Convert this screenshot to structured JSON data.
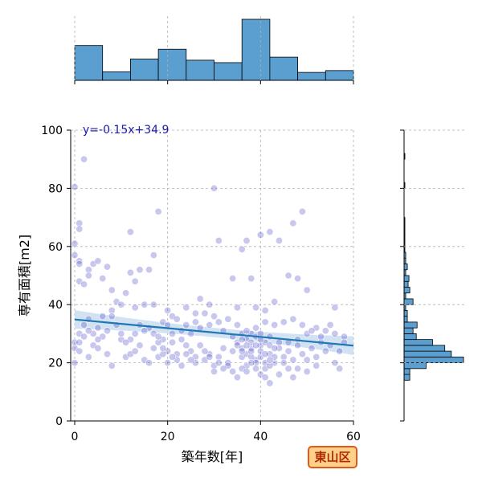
{
  "chart_data": {
    "type": "scatter",
    "xlabel": "築年数[年]",
    "ylabel": "専有面積[m2]",
    "xlim": [
      -1,
      60
    ],
    "ylim": [
      0,
      100
    ],
    "xticks": [
      "0",
      "20",
      "40",
      "60"
    ],
    "yticks": [
      "0",
      "20",
      "40",
      "60",
      "80",
      "100"
    ],
    "grid": true,
    "annotation": "y=-0.15x+34.9",
    "badge": "東山区",
    "regression": {
      "slope": -0.15,
      "intercept": 34.9
    },
    "colors": {
      "points": "#3b3bc4",
      "regression_line": "#1f77b4",
      "confidence_band": "#c6dbef",
      "histogram": "#5a9fcf",
      "annotation": "#1a1aa6",
      "badge_bg": "#ffd08a",
      "badge_border": "#e05a1a",
      "badge_text": "#b02a00"
    },
    "points": [
      [
        0,
        80.5
      ],
      [
        2,
        90
      ],
      [
        30,
        80
      ],
      [
        1,
        68
      ],
      [
        1,
        66
      ],
      [
        0,
        61
      ],
      [
        0,
        57
      ],
      [
        1,
        55
      ],
      [
        1,
        54
      ],
      [
        3,
        52
      ],
      [
        4,
        54
      ],
      [
        5,
        55
      ],
      [
        7,
        53
      ],
      [
        1,
        48
      ],
      [
        2,
        47
      ],
      [
        3,
        50
      ],
      [
        6,
        49
      ],
      [
        8,
        45
      ],
      [
        11,
        44
      ],
      [
        9,
        41
      ],
      [
        12,
        51
      ],
      [
        13,
        48
      ],
      [
        14,
        52
      ],
      [
        16,
        52
      ],
      [
        17,
        57
      ],
      [
        18,
        72
      ],
      [
        12,
        65
      ],
      [
        31,
        62
      ],
      [
        36,
        59
      ],
      [
        37,
        62
      ],
      [
        38,
        49
      ],
      [
        34,
        49
      ],
      [
        40,
        64
      ],
      [
        42,
        65
      ],
      [
        44,
        62
      ],
      [
        47,
        68
      ],
      [
        49,
        72
      ],
      [
        46,
        50
      ],
      [
        48,
        49
      ],
      [
        50,
        45
      ],
      [
        56,
        39
      ],
      [
        43,
        41
      ],
      [
        41,
        38
      ],
      [
        39,
        39
      ],
      [
        35,
        39
      ],
      [
        29,
        40
      ],
      [
        27,
        42
      ],
      [
        26,
        37
      ],
      [
        24,
        39
      ],
      [
        20,
        38
      ],
      [
        19,
        34
      ],
      [
        21,
        36
      ],
      [
        17,
        40
      ],
      [
        15,
        40
      ],
      [
        13,
        39
      ],
      [
        10,
        40
      ],
      [
        8,
        38
      ],
      [
        6,
        36
      ],
      [
        5,
        32
      ],
      [
        3,
        35
      ],
      [
        2,
        33
      ],
      [
        1,
        30
      ],
      [
        0,
        27
      ],
      [
        0,
        25
      ],
      [
        1,
        24
      ],
      [
        3,
        22
      ],
      [
        4,
        26
      ],
      [
        5,
        25
      ],
      [
        7,
        23
      ],
      [
        8,
        19
      ],
      [
        10,
        28
      ],
      [
        11,
        22
      ],
      [
        12,
        23
      ],
      [
        13,
        24
      ],
      [
        14,
        26
      ],
      [
        15,
        21
      ],
      [
        16,
        20
      ],
      [
        17,
        25
      ],
      [
        18,
        22
      ],
      [
        19,
        28
      ],
      [
        20,
        24
      ],
      [
        21,
        30
      ],
      [
        22,
        23
      ],
      [
        23,
        28
      ],
      [
        24,
        26
      ],
      [
        25,
        24
      ],
      [
        26,
        22
      ],
      [
        27,
        26
      ],
      [
        28,
        21
      ],
      [
        29,
        23
      ],
      [
        30,
        19
      ],
      [
        31,
        22
      ],
      [
        32,
        25
      ],
      [
        33,
        20
      ],
      [
        34,
        24
      ],
      [
        35,
        27
      ],
      [
        36,
        22
      ],
      [
        37,
        19
      ],
      [
        38,
        25
      ],
      [
        39,
        21
      ],
      [
        40,
        26
      ],
      [
        41,
        18
      ],
      [
        42,
        23
      ],
      [
        43,
        20
      ],
      [
        44,
        27
      ],
      [
        45,
        22
      ],
      [
        46,
        24
      ],
      [
        47,
        21
      ],
      [
        48,
        28
      ],
      [
        49,
        23
      ],
      [
        50,
        30
      ],
      [
        51,
        25
      ],
      [
        52,
        32
      ],
      [
        53,
        27
      ],
      [
        54,
        31
      ],
      [
        55,
        26
      ],
      [
        56,
        30
      ],
      [
        57,
        24
      ],
      [
        58,
        29
      ],
      [
        36,
        30
      ],
      [
        37,
        28
      ],
      [
        38,
        30
      ],
      [
        39,
        29
      ],
      [
        40,
        30
      ],
      [
        41,
        27
      ],
      [
        42,
        29
      ],
      [
        35,
        26
      ],
      [
        36,
        25
      ],
      [
        37,
        23
      ],
      [
        38,
        22
      ],
      [
        39,
        20
      ],
      [
        40,
        22
      ],
      [
        41,
        20
      ],
      [
        42,
        19
      ],
      [
        43,
        22
      ],
      [
        36,
        18
      ],
      [
        37,
        17
      ],
      [
        38,
        20
      ],
      [
        39,
        18
      ],
      [
        40,
        16
      ],
      [
        41,
        15
      ],
      [
        42,
        13
      ],
      [
        35,
        15
      ],
      [
        34,
        17
      ],
      [
        33,
        19
      ],
      [
        32,
        18
      ],
      [
        31,
        20
      ],
      [
        30,
        17
      ],
      [
        29,
        22
      ],
      [
        28,
        24
      ],
      [
        26,
        20
      ],
      [
        25,
        21
      ],
      [
        24,
        23
      ],
      [
        23,
        19
      ],
      [
        22,
        21
      ],
      [
        21,
        22
      ],
      [
        20,
        20
      ],
      [
        19,
        23
      ],
      [
        18,
        27
      ],
      [
        17,
        30
      ],
      [
        16,
        32
      ],
      [
        15,
        31
      ],
      [
        14,
        33
      ],
      [
        13,
        30
      ],
      [
        12,
        28
      ],
      [
        11,
        27
      ],
      [
        10,
        30
      ],
      [
        9,
        33
      ],
      [
        8,
        36
      ],
      [
        7,
        31
      ],
      [
        6,
        29
      ],
      [
        5,
        28
      ],
      [
        4,
        30
      ],
      [
        3,
        31
      ],
      [
        2,
        29
      ],
      [
        1,
        27
      ],
      [
        0,
        20
      ],
      [
        44,
        16
      ],
      [
        46,
        18
      ],
      [
        48,
        18
      ],
      [
        50,
        17
      ],
      [
        52,
        22
      ],
      [
        54,
        24
      ],
      [
        56,
        20
      ],
      [
        57,
        18
      ],
      [
        58,
        27
      ],
      [
        55,
        33
      ],
      [
        53,
        29
      ],
      [
        51,
        31
      ],
      [
        49,
        33
      ],
      [
        47,
        35
      ],
      [
        45,
        34
      ],
      [
        43,
        33
      ],
      [
        41,
        34
      ],
      [
        39,
        32
      ],
      [
        37,
        31
      ],
      [
        35,
        33
      ],
      [
        33,
        35
      ],
      [
        31,
        34
      ],
      [
        29,
        33
      ],
      [
        27,
        32
      ],
      [
        25,
        30
      ],
      [
        23,
        31
      ],
      [
        21,
        27
      ],
      [
        19,
        25
      ],
      [
        18,
        29
      ],
      [
        20,
        33
      ],
      [
        22,
        35
      ],
      [
        24,
        33
      ],
      [
        26,
        34
      ],
      [
        28,
        37
      ],
      [
        30,
        36
      ],
      [
        32,
        31
      ],
      [
        34,
        29
      ],
      [
        36,
        28
      ],
      [
        38,
        27
      ],
      [
        40,
        24
      ],
      [
        42,
        26
      ],
      [
        44,
        25
      ],
      [
        46,
        27
      ],
      [
        48,
        26
      ],
      [
        50,
        21
      ],
      [
        52,
        19
      ],
      [
        47,
        15
      ],
      [
        45,
        20
      ],
      [
        43,
        25
      ],
      [
        38,
        24
      ],
      [
        37,
        26
      ],
      [
        36,
        24
      ],
      [
        40,
        28
      ],
      [
        39,
        26
      ],
      [
        41,
        23
      ],
      [
        42,
        21
      ]
    ],
    "x_histogram": {
      "bin_edges": [
        0,
        6,
        12,
        18,
        24,
        30,
        36,
        42,
        48,
        54,
        60
      ],
      "counts": [
        57,
        14,
        35,
        51,
        33,
        29,
        100,
        38,
        13,
        16
      ],
      "max": 100
    },
    "y_histogram": {
      "bin_edges": [
        14,
        16,
        18,
        20,
        22,
        24,
        26,
        28,
        30,
        32,
        34,
        36,
        38,
        40,
        42,
        44,
        46,
        48,
        50,
        52,
        54,
        56,
        58,
        60,
        62,
        64,
        66,
        68,
        70,
        72,
        74,
        76,
        78,
        80,
        82,
        84,
        86,
        88,
        90,
        92
      ],
      "counts": [
        7,
        7,
        27,
        73,
        58,
        50,
        35,
        15,
        11,
        16,
        4,
        4,
        2,
        11,
        2,
        7,
        5,
        6,
        2,
        4,
        2,
        2,
        1,
        1,
        1,
        1,
        1,
        1,
        0,
        0,
        0,
        0,
        0,
        1,
        0,
        0,
        0,
        0,
        1
      ],
      "max": 73
    }
  }
}
